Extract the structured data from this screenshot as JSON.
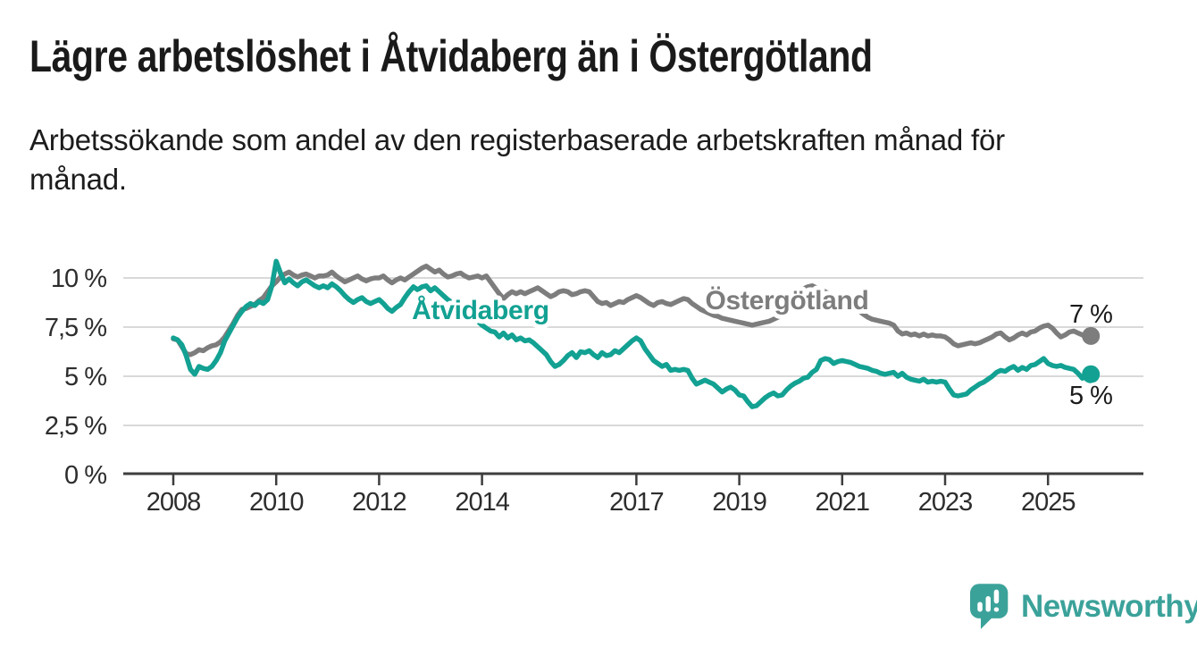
{
  "title": "Lägre arbetslöshet i Åtvidaberg än i Östergötland",
  "subtitle": "Arbetssökande som andel av den registerbaserade arbetskraften månad för månad.",
  "brand": {
    "name": "Newsworthy",
    "logo_icon": "speech-bubble-bar-chart-icon"
  },
  "colors": {
    "atvidaberg": "#12a192",
    "ostergotland": "#7d7d7d",
    "grid": "#d9d9d9",
    "axis": "#3d3d3d",
    "text": "#1a1a1a",
    "brand_teal": "#3ba29a"
  },
  "chart_data": {
    "type": "line",
    "title": "Lägre arbetslöshet i Åtvidaberg än i Östergötland",
    "subtitle": "Arbetssökande som andel av den registerbaserade arbetskraften månad för månad.",
    "unit": "%",
    "x_start": "2008-01",
    "x_end": "2025-11",
    "points_per_year": 12,
    "ylim": [
      0,
      11
    ],
    "grid": true,
    "legend_position": "inline-labels",
    "yticks": [
      {
        "value": 0,
        "label": "0 %"
      },
      {
        "value": 2.5,
        "label": "2,5 %"
      },
      {
        "value": 5,
        "label": "5 %"
      },
      {
        "value": 7.5,
        "label": "7,5 %"
      },
      {
        "value": 10,
        "label": "10 %"
      }
    ],
    "xticks": [
      {
        "year": 2008,
        "label": "2008"
      },
      {
        "year": 2010,
        "label": "2010"
      },
      {
        "year": 2012,
        "label": "2012"
      },
      {
        "year": 2014,
        "label": "2014"
      },
      {
        "year": 2017,
        "label": "2017"
      },
      {
        "year": 2019,
        "label": "2019"
      },
      {
        "year": 2021,
        "label": "2021"
      },
      {
        "year": 2023,
        "label": "2023"
      },
      {
        "year": 2025,
        "label": "2025"
      }
    ],
    "series": [
      {
        "name": "Östergötland",
        "color": "#7d7d7d",
        "end_value_label": "7 %",
        "values": [
          6.9,
          6.85,
          6.5,
          6.15,
          6.1,
          6.2,
          6.35,
          6.3,
          6.45,
          6.55,
          6.6,
          6.75,
          7.0,
          7.35,
          7.7,
          8.1,
          8.4,
          8.45,
          8.55,
          8.65,
          8.85,
          9.0,
          9.3,
          9.6,
          9.8,
          10.05,
          10.2,
          10.3,
          10.15,
          10.05,
          10.15,
          10.2,
          10.1,
          10.0,
          10.1,
          10.1,
          10.15,
          10.3,
          10.1,
          9.95,
          9.8,
          9.9,
          10.0,
          10.1,
          9.95,
          9.85,
          9.95,
          10.0,
          10.0,
          10.1,
          9.9,
          9.75,
          9.9,
          10.0,
          9.9,
          10.05,
          10.2,
          10.35,
          10.5,
          10.6,
          10.45,
          10.3,
          10.4,
          10.2,
          10.05,
          10.1,
          10.2,
          10.25,
          10.1,
          10.0,
          10.05,
          10.1,
          10.0,
          10.1,
          9.8,
          9.5,
          9.2,
          8.95,
          9.15,
          9.3,
          9.2,
          9.3,
          9.2,
          9.3,
          9.4,
          9.5,
          9.35,
          9.2,
          9.05,
          9.15,
          9.3,
          9.35,
          9.3,
          9.15,
          9.2,
          9.3,
          9.35,
          9.3,
          9.05,
          8.8,
          8.7,
          8.75,
          8.6,
          8.7,
          8.8,
          8.75,
          8.9,
          9.0,
          9.1,
          9.0,
          8.85,
          8.7,
          8.6,
          8.75,
          8.8,
          8.7,
          8.65,
          8.75,
          8.85,
          8.95,
          8.9,
          8.7,
          8.55,
          8.4,
          8.3,
          8.2,
          8.1,
          8.05,
          7.95,
          7.9,
          7.85,
          7.8,
          7.75,
          7.7,
          7.65,
          7.6,
          7.65,
          7.7,
          7.75,
          7.8,
          7.9,
          8.0,
          8.1,
          8.25,
          8.4,
          8.6,
          9.1,
          9.45,
          9.55,
          9.6,
          9.5,
          9.4,
          9.3,
          9.2,
          9.1,
          9.0,
          8.9,
          8.75,
          8.6,
          8.45,
          8.3,
          8.15,
          8.0,
          7.9,
          7.85,
          7.8,
          7.75,
          7.7,
          7.6,
          7.3,
          7.15,
          7.2,
          7.1,
          7.15,
          7.05,
          7.15,
          7.05,
          7.1,
          7.05,
          7.05,
          7.0,
          6.85,
          6.65,
          6.55,
          6.6,
          6.65,
          6.7,
          6.65,
          6.7,
          6.8,
          6.9,
          7.0,
          7.15,
          7.2,
          7.0,
          6.85,
          6.95,
          7.1,
          7.2,
          7.1,
          7.25,
          7.3,
          7.45,
          7.55,
          7.6,
          7.45,
          7.2,
          7.0,
          7.1,
          7.25,
          7.3,
          7.2,
          7.1,
          7.0,
          7.05
        ]
      },
      {
        "name": "Åtvidaberg",
        "color": "#12a192",
        "end_value_label": "5 %",
        "values": [
          6.95,
          6.85,
          6.6,
          6.05,
          5.35,
          5.1,
          5.5,
          5.4,
          5.35,
          5.5,
          5.8,
          6.2,
          6.8,
          7.2,
          7.6,
          8.0,
          8.3,
          8.55,
          8.7,
          8.6,
          8.8,
          8.7,
          8.9,
          9.6,
          10.85,
          10.25,
          9.75,
          9.95,
          9.75,
          9.6,
          9.8,
          9.9,
          9.75,
          9.6,
          9.5,
          9.6,
          9.5,
          9.7,
          9.55,
          9.35,
          9.1,
          8.9,
          8.75,
          8.9,
          9.0,
          8.8,
          8.7,
          8.8,
          8.9,
          8.7,
          8.45,
          8.3,
          8.5,
          8.65,
          9.0,
          9.3,
          9.55,
          9.4,
          9.55,
          9.6,
          9.35,
          9.5,
          9.3,
          9.1,
          8.9,
          8.75,
          8.6,
          8.45,
          8.3,
          8.1,
          7.95,
          7.8,
          7.6,
          7.45,
          7.3,
          7.25,
          7.0,
          7.2,
          6.95,
          7.1,
          6.85,
          6.95,
          6.8,
          6.85,
          6.7,
          6.5,
          6.3,
          6.1,
          5.75,
          5.5,
          5.6,
          5.8,
          6.05,
          6.2,
          5.95,
          6.25,
          6.2,
          6.3,
          6.1,
          5.95,
          6.2,
          6.05,
          6.1,
          6.3,
          6.2,
          6.4,
          6.6,
          6.8,
          6.95,
          6.8,
          6.4,
          6.1,
          5.8,
          5.65,
          5.5,
          5.6,
          5.3,
          5.35,
          5.3,
          5.35,
          5.3,
          4.9,
          4.6,
          4.7,
          4.8,
          4.7,
          4.6,
          4.4,
          4.2,
          4.35,
          4.45,
          4.3,
          4.05,
          4.0,
          3.7,
          3.45,
          3.5,
          3.7,
          3.9,
          4.05,
          4.15,
          4.0,
          4.05,
          4.3,
          4.5,
          4.65,
          4.75,
          4.9,
          4.95,
          5.2,
          5.35,
          5.8,
          5.9,
          5.85,
          5.65,
          5.75,
          5.8,
          5.75,
          5.7,
          5.6,
          5.5,
          5.45,
          5.4,
          5.3,
          5.25,
          5.15,
          5.1,
          5.15,
          5.2,
          5.0,
          5.15,
          4.95,
          4.85,
          4.8,
          4.75,
          4.85,
          4.7,
          4.75,
          4.7,
          4.75,
          4.7,
          4.35,
          4.05,
          4.0,
          4.05,
          4.1,
          4.3,
          4.45,
          4.6,
          4.7,
          4.85,
          5.0,
          5.2,
          5.3,
          5.25,
          5.4,
          5.5,
          5.3,
          5.45,
          5.35,
          5.55,
          5.6,
          5.75,
          5.9,
          5.65,
          5.55,
          5.5,
          5.55,
          5.45,
          5.4,
          5.35,
          5.15,
          4.9,
          5.05,
          5.1
        ]
      }
    ]
  }
}
